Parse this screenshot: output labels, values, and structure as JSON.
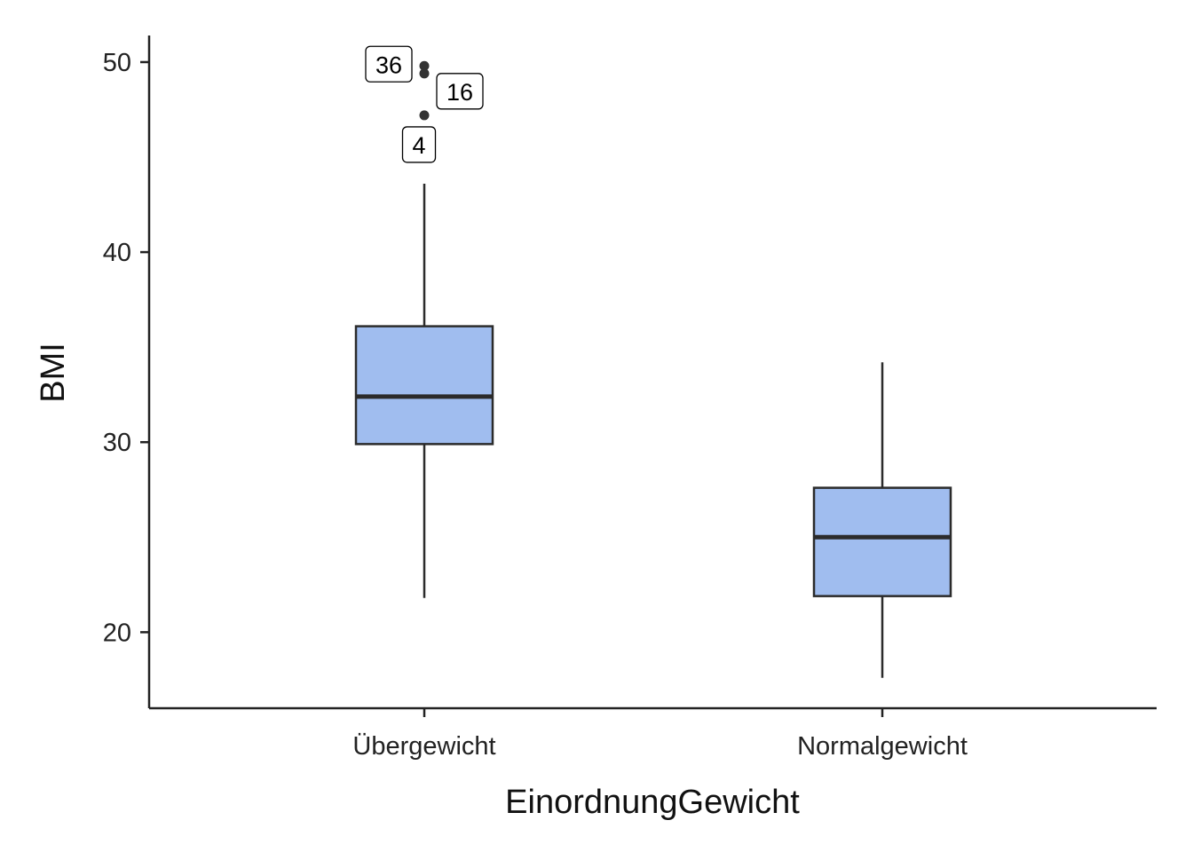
{
  "chart_data": {
    "type": "box",
    "xlabel": "EinordnungGewicht",
    "ylabel": "BMI",
    "ylim": [
      16.0,
      51.4
    ],
    "yticks": [
      20,
      30,
      40,
      50
    ],
    "categories": [
      "Übergewicht",
      "Normalgewicht"
    ],
    "boxes": [
      {
        "category": "Übergewicht",
        "whisker_low": 21.8,
        "q1": 29.9,
        "median": 32.4,
        "q3": 36.1,
        "whisker_high": 43.6,
        "outliers": [
          {
            "value": 49.8,
            "label": "36"
          },
          {
            "value": 49.4,
            "label": "16"
          },
          {
            "value": 47.2,
            "label": "4"
          }
        ]
      },
      {
        "category": "Normalgewicht",
        "whisker_low": 17.6,
        "q1": 21.9,
        "median": 25.0,
        "q3": 27.6,
        "whisker_high": 34.2,
        "outliers": []
      }
    ],
    "box_fill": "#a0bdef",
    "line_color": "#2b2b2b",
    "grid": false,
    "legend": "none"
  }
}
